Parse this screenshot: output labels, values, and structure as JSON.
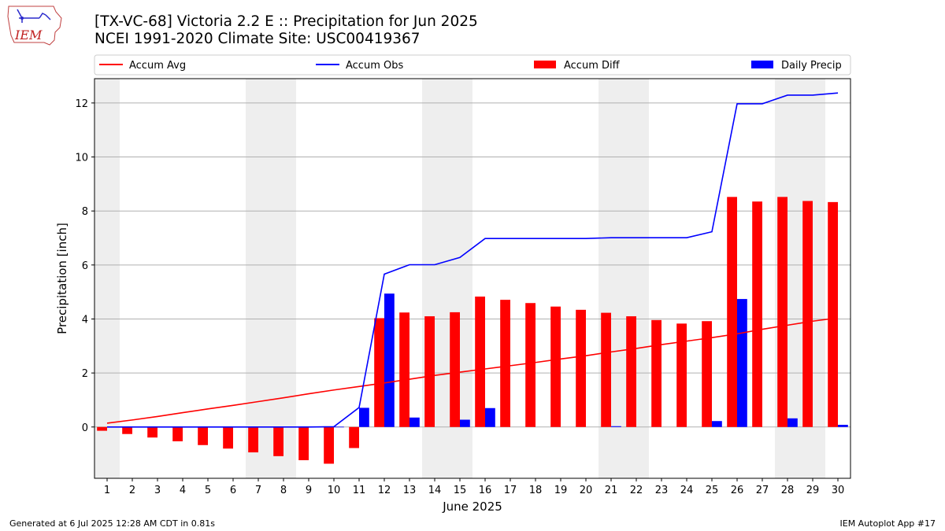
{
  "header": {
    "title": "[TX-VC-68] Victoria 2.2 E :: Precipitation for Jun 2025",
    "subtitle": "NCEI 1991-2020 Climate Site: USC00419367"
  },
  "logo": {
    "text": "IEM"
  },
  "footer": {
    "left": "Generated at 6 Jul 2025 12:28 AM CDT in 0.81s",
    "right": "IEM Autoplot App #17"
  },
  "chart_data": {
    "type": "bar",
    "xlabel": "June 2025",
    "ylabel": "Precipitation [inch]",
    "xlim": [
      0.5,
      30.5
    ],
    "ylim": [
      -1.9,
      12.9
    ],
    "yticks": [
      0,
      2,
      4,
      6,
      8,
      10,
      12
    ],
    "grid": "horizontal",
    "legend_placement": "top, above plot",
    "weekend_shading_days": [
      1,
      7,
      8,
      14,
      15,
      21,
      22,
      28,
      29
    ],
    "categories": [
      1,
      2,
      3,
      4,
      5,
      6,
      7,
      8,
      9,
      10,
      11,
      12,
      13,
      14,
      15,
      16,
      17,
      18,
      19,
      20,
      21,
      22,
      23,
      24,
      25,
      26,
      27,
      28,
      29,
      30
    ],
    "series": [
      {
        "name": "Accum Avg",
        "kind": "line",
        "color": "#ff0000",
        "values": [
          0.14,
          0.26,
          0.39,
          0.53,
          0.67,
          0.8,
          0.94,
          1.08,
          1.23,
          1.37,
          1.5,
          1.63,
          1.77,
          1.91,
          2.03,
          2.15,
          2.27,
          2.39,
          2.52,
          2.64,
          2.78,
          2.91,
          3.05,
          3.18,
          3.31,
          3.45,
          3.62,
          3.77,
          3.92,
          4.04
        ]
      },
      {
        "name": "Accum Obs",
        "kind": "line",
        "color": "#0000ff",
        "values": [
          0.0,
          0.0,
          0.0,
          0.0,
          0.0,
          0.0,
          0.0,
          0.0,
          0.0,
          0.01,
          0.72,
          5.66,
          6.01,
          6.01,
          6.28,
          6.98,
          6.98,
          6.98,
          6.98,
          6.98,
          7.01,
          7.01,
          7.01,
          7.01,
          7.23,
          11.97,
          11.97,
          12.29,
          12.29,
          12.37
        ]
      },
      {
        "name": "Accum Diff",
        "kind": "bar",
        "color": "#ff0000",
        "values": [
          -0.14,
          -0.26,
          -0.39,
          -0.53,
          -0.67,
          -0.8,
          -0.94,
          -1.08,
          -1.23,
          -1.36,
          -0.78,
          4.03,
          4.24,
          4.1,
          4.25,
          4.83,
          4.71,
          4.59,
          4.46,
          4.34,
          4.23,
          4.1,
          3.96,
          3.83,
          3.92,
          8.52,
          8.35,
          8.52,
          8.37,
          8.33
        ]
      },
      {
        "name": "Daily Precip",
        "kind": "bar",
        "color": "#0000ff",
        "values": [
          0,
          0,
          0,
          0,
          0,
          0,
          0,
          0,
          0,
          0.01,
          0.71,
          4.94,
          0.35,
          0,
          0.27,
          0.7,
          0,
          0,
          0,
          0,
          0.03,
          0,
          0,
          0,
          0.22,
          4.74,
          0,
          0.32,
          0,
          0.08
        ]
      }
    ]
  }
}
